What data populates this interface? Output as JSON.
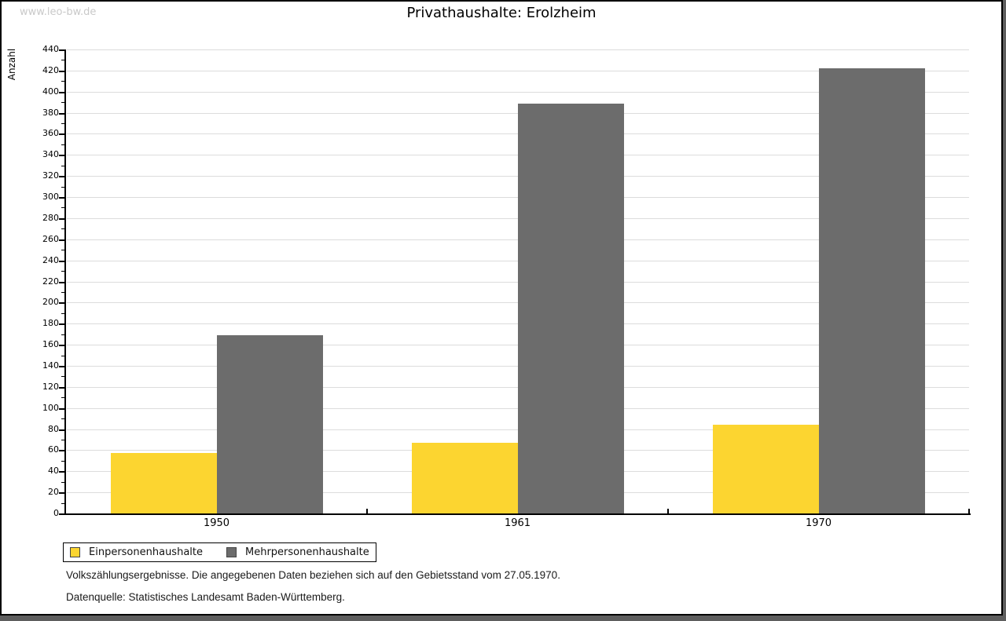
{
  "watermark": "www.leo-bw.de",
  "title": "Privathaushalte: Erolzheim",
  "colors": {
    "series_yellow": "#FCD530",
    "series_gray": "#6C6C6C",
    "gridline": "#dcdcdc",
    "frame_shadow": "#5e5e5e",
    "watermark": "#c9c9c9"
  },
  "chart_data": {
    "type": "bar",
    "title": "Privathaushalte: Erolzheim",
    "categories": [
      "1950",
      "1961",
      "1970"
    ],
    "series": [
      {
        "name": "Einpersonenhaushalte",
        "color": "#FCD530",
        "values": [
          57,
          67,
          84
        ]
      },
      {
        "name": "Mehrpersonenhaushalte",
        "color": "#6C6C6C",
        "values": [
          169,
          389,
          422
        ]
      }
    ],
    "xlabel": "",
    "ylabel": "Anzahl",
    "ylim": [
      0,
      440
    ],
    "ytick_step": 20,
    "yminor_step": 10,
    "grid": true,
    "legend_position": "bottom-left"
  },
  "footnotes": [
    "Volkszählungsergebnisse. Die angegebenen Daten beziehen sich auf den Gebietsstand vom 27.05.1970.",
    "Datenquelle: Statistisches Landesamt Baden-Württemberg."
  ]
}
